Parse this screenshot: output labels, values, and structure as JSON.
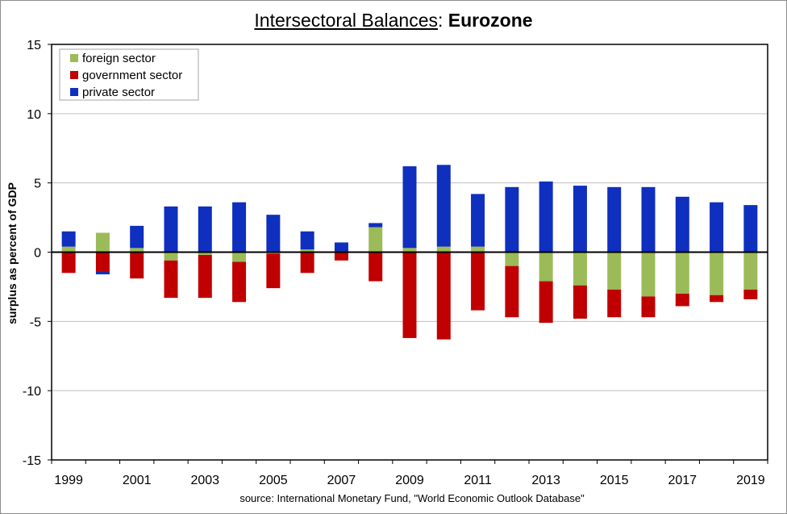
{
  "title": {
    "part1": "Intersectoral Balances",
    "sep": ": ",
    "part2": "Eurozone"
  },
  "source": "source:  International Monetary Fund, \"World Economic Outlook Database\"",
  "colors": {
    "foreign": "#9bbb59",
    "government": "#c00000",
    "private": "#0f2fbe"
  },
  "chart_data": {
    "type": "bar",
    "stacked": true,
    "title": "Intersectoral Balances: Eurozone",
    "xlabel": "",
    "ylabel": "surplus as percent of GDP",
    "ylim": [
      -15,
      15
    ],
    "yticks": [
      -15,
      -10,
      -5,
      0,
      5,
      10,
      15
    ],
    "grid": true,
    "legend_position": "top-left",
    "categories": [
      "1999",
      "2000",
      "2001",
      "2002",
      "2003",
      "2004",
      "2005",
      "2006",
      "2007",
      "2008",
      "2009",
      "2010",
      "2011",
      "2012",
      "2013",
      "2014",
      "2015",
      "2016",
      "2017",
      "2018",
      "2019"
    ],
    "xtick_labels": [
      "1999",
      "",
      "2001",
      "",
      "2003",
      "",
      "2005",
      "",
      "2007",
      "",
      "2009",
      "",
      "2011",
      "",
      "2013",
      "",
      "2015",
      "",
      "2017",
      "",
      "2019"
    ],
    "series": [
      {
        "name": "foreign sector",
        "key": "foreign",
        "values": [
          0.4,
          1.4,
          0.3,
          -0.6,
          -0.2,
          -0.7,
          -0.1,
          0.2,
          0.0,
          1.8,
          0.3,
          0.4,
          0.4,
          -1.0,
          -2.1,
          -2.4,
          -2.7,
          -3.2,
          -3.0,
          -3.1,
          -2.7
        ]
      },
      {
        "name": "government sector",
        "key": "government",
        "values": [
          -1.5,
          -1.4,
          -1.9,
          -2.7,
          -3.1,
          -2.9,
          -2.5,
          -1.5,
          -0.6,
          -2.1,
          -6.2,
          -6.3,
          -4.2,
          -3.7,
          -3.0,
          -2.4,
          -2.0,
          -1.5,
          -0.9,
          -0.5,
          -0.7
        ]
      },
      {
        "name": "private sector",
        "key": "private",
        "values": [
          1.1,
          -0.2,
          1.6,
          3.3,
          3.3,
          3.6,
          2.7,
          1.3,
          0.7,
          0.3,
          5.9,
          5.9,
          3.8,
          4.7,
          5.1,
          4.8,
          4.7,
          4.7,
          4.0,
          3.6,
          3.4
        ]
      }
    ]
  }
}
